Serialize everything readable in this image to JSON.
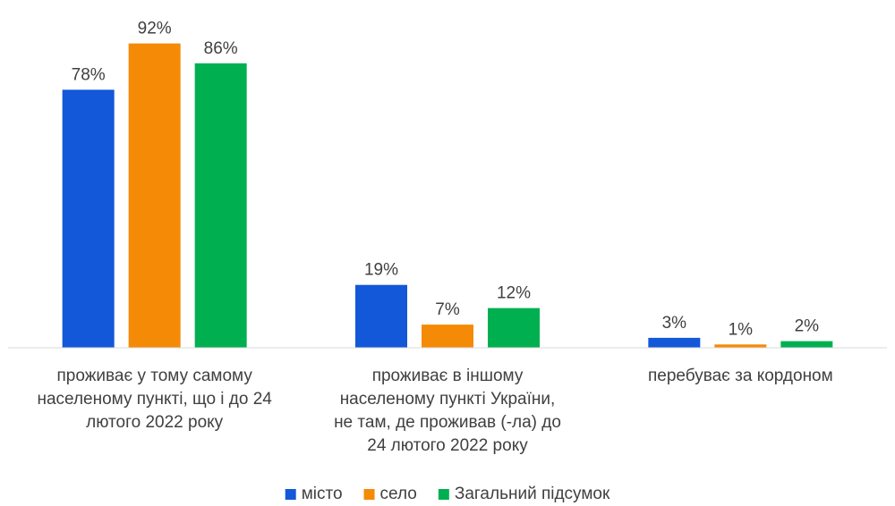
{
  "chart_data": {
    "type": "bar",
    "categories": [
      [
        "проживає у тому самому",
        "населеному пункті,  що  і до 24",
        "лютого 2022 року"
      ],
      [
        "проживає в іншому",
        "населеному пункті  України,",
        "не там, де проживав (-ла)  до",
        "24 лютого 2022 року"
      ],
      [
        "перебуває за кордоном"
      ]
    ],
    "series": [
      {
        "name": "місто",
        "color": "#1258d8",
        "values": [
          78,
          19,
          3
        ],
        "value_labels": [
          "78%",
          "19%",
          "3%"
        ]
      },
      {
        "name": "село",
        "color": "#f58a07",
        "values": [
          92,
          7,
          1
        ],
        "value_labels": [
          "92%",
          "7%",
          "1%"
        ]
      },
      {
        "name": "Загальний підсумок",
        "color": "#00b050",
        "values": [
          86,
          12,
          2
        ],
        "value_labels": [
          "86%",
          "12%",
          "2%"
        ]
      }
    ],
    "ylim": [
      0,
      100
    ],
    "legend": "bottom"
  }
}
